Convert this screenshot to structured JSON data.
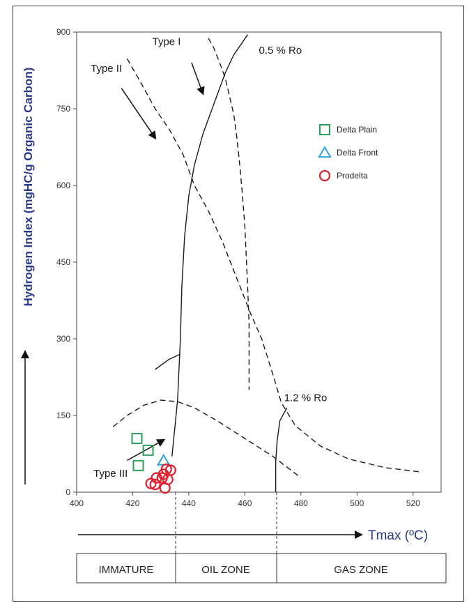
{
  "chart_data": {
    "type": "scatter",
    "xlabel": "Tmax (ºC)",
    "ylabel": "Hydrogen Index (mgHC/g Organic Carbon)",
    "xlim": [
      400,
      530
    ],
    "ylim": [
      0,
      900
    ],
    "xticks": [
      "400",
      "420",
      "440",
      "460",
      "480",
      "500",
      "520"
    ],
    "yticks": [
      "0",
      "150",
      "300",
      "450",
      "600",
      "750",
      "900"
    ],
    "legend_position": "upper-right",
    "series": [
      {
        "name": "Delta Plain",
        "marker": "square",
        "color": "#2ca05a",
        "x": [
          421.5,
          425.5,
          422.0
        ],
        "y": [
          105,
          82,
          52
        ]
      },
      {
        "name": "Delta Front",
        "marker": "triangle",
        "color": "#29a3d9",
        "x": [
          431.0
        ],
        "y": [
          62
        ]
      },
      {
        "name": "Prodelta",
        "marker": "circle",
        "color": "#e0202e",
        "x": [
          432.0,
          433.5,
          431.0,
          428.5,
          430.5,
          432.5,
          426.5,
          428.0,
          431.5
        ],
        "y": [
          45,
          43,
          35,
          28,
          28,
          25,
          17,
          15,
          8
        ]
      }
    ],
    "curves": [
      {
        "label": "Type I",
        "style": "dashed",
        "points": [
          [
            447,
            888
          ],
          [
            449,
            868
          ],
          [
            451,
            840
          ],
          [
            453,
            810
          ],
          [
            454.5,
            775
          ],
          [
            456,
            740
          ],
          [
            457,
            700
          ],
          [
            458,
            650
          ],
          [
            459,
            590
          ],
          [
            460,
            520
          ],
          [
            460.5,
            460
          ],
          [
            461,
            400
          ],
          [
            461.5,
            330
          ],
          [
            461.5,
            270
          ],
          [
            461.5,
            200
          ]
        ]
      },
      {
        "label": "Type II",
        "style": "dashed",
        "points": [
          [
            418,
            848
          ],
          [
            423,
            800
          ],
          [
            428,
            750
          ],
          [
            433,
            710
          ],
          [
            438,
            660
          ],
          [
            442,
            600
          ],
          [
            447,
            550
          ],
          [
            452,
            490
          ],
          [
            457,
            420
          ],
          [
            462,
            350
          ],
          [
            466,
            300
          ],
          [
            470,
            230
          ],
          [
            473,
            175
          ],
          [
            478,
            130
          ],
          [
            487,
            90
          ],
          [
            497,
            65
          ],
          [
            510,
            48
          ],
          [
            522,
            40
          ]
        ]
      },
      {
        "label": "Type III",
        "style": "dashed",
        "points": [
          [
            413,
            128
          ],
          [
            418,
            150
          ],
          [
            424,
            170
          ],
          [
            430,
            180
          ],
          [
            436,
            177
          ],
          [
            442,
            165
          ],
          [
            450,
            140
          ],
          [
            460,
            105
          ],
          [
            470,
            70
          ],
          [
            480,
            28
          ]
        ]
      },
      {
        "label": "0.5 % Ro",
        "style": "solid",
        "points": [
          [
            434,
            70
          ],
          [
            436,
            180
          ],
          [
            437,
            300
          ],
          [
            437.5,
            400
          ],
          [
            438.5,
            500
          ],
          [
            440,
            580
          ],
          [
            442,
            640
          ],
          [
            445,
            700
          ],
          [
            449,
            760
          ],
          [
            453,
            820
          ],
          [
            456,
            855
          ],
          [
            461,
            895
          ]
        ]
      },
      {
        "label": "1.2 % Ro",
        "style": "solid",
        "points": [
          [
            471,
            0
          ],
          [
            471,
            60
          ],
          [
            471.5,
            100
          ],
          [
            472.5,
            140
          ],
          [
            475,
            165
          ]
        ]
      },
      {
        "label": "",
        "style": "solid",
        "points": [
          [
            428,
            240
          ],
          [
            433,
            260
          ],
          [
            437,
            270
          ]
        ]
      }
    ],
    "annotations": [
      {
        "text": "Type I",
        "x": 427,
        "y": 875
      },
      {
        "text": "Type II",
        "x": 405,
        "y": 822
      },
      {
        "text": "Type III",
        "x": 406,
        "y": 30
      },
      {
        "text": "0.5 % Ro",
        "x": 465,
        "y": 858
      },
      {
        "text": "1.2 % Ro",
        "x": 474,
        "y": 178
      }
    ],
    "arrows": [
      {
        "from": [
          441,
          840
        ],
        "to": [
          445,
          780
        ]
      },
      {
        "from": [
          416,
          790
        ],
        "to": [
          428,
          693
        ]
      },
      {
        "from": [
          418,
          62
        ],
        "to": [
          431,
          102
        ]
      }
    ],
    "maturity_zones": [
      "IMMATURE",
      "OIL ZONE",
      "GAS ZONE"
    ],
    "zone_boundaries": [
      435,
      471
    ]
  }
}
